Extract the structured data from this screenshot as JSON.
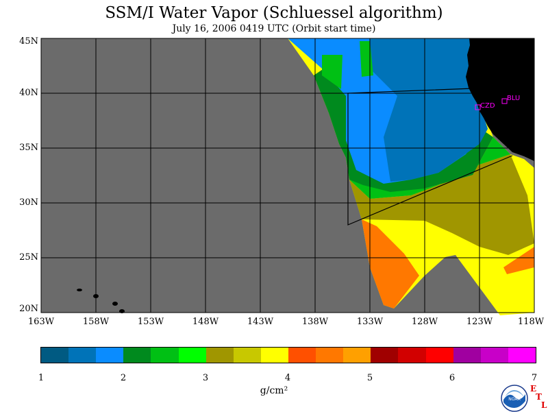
{
  "title": "SSM/I Water Vapor (Schluessel algorithm)",
  "subtitle": "July 16, 2006  0419 UTC  (Orbit start time)",
  "latitude_labels": [
    "45N",
    "40N",
    "35N",
    "30N",
    "25N",
    "20N"
  ],
  "longitude_labels": [
    "163W",
    "158W",
    "153W",
    "148W",
    "143W",
    "138W",
    "133W",
    "128W",
    "123W",
    "118W"
  ],
  "stations": [
    {
      "id": "CZD",
      "lat": 38.6,
      "lon": -123.2
    },
    {
      "id": "BLU",
      "lat": 39.3,
      "lon": -121.8
    }
  ],
  "colorbar": {
    "colors": [
      "#005a82",
      "#0073b8",
      "#0a8cff",
      "#008a1e",
      "#00c014",
      "#00ff00",
      "#a09600",
      "#c8c800",
      "#ffff00",
      "#ff5000",
      "#ff7800",
      "#ffa000",
      "#a00000",
      "#d20000",
      "#ff0000",
      "#a000a0",
      "#c800c8",
      "#ff00ff"
    ],
    "tick_labels": [
      "1",
      "2",
      "3",
      "4",
      "5",
      "6",
      "7"
    ]
  },
  "units": "g/cm²",
  "colors": {
    "no_data": "#6b6b6b",
    "land": "#000000",
    "grid": "#000000",
    "station": "#ff00ff"
  },
  "logos": {
    "noaa": "NOAA",
    "etl": "ETL"
  }
}
